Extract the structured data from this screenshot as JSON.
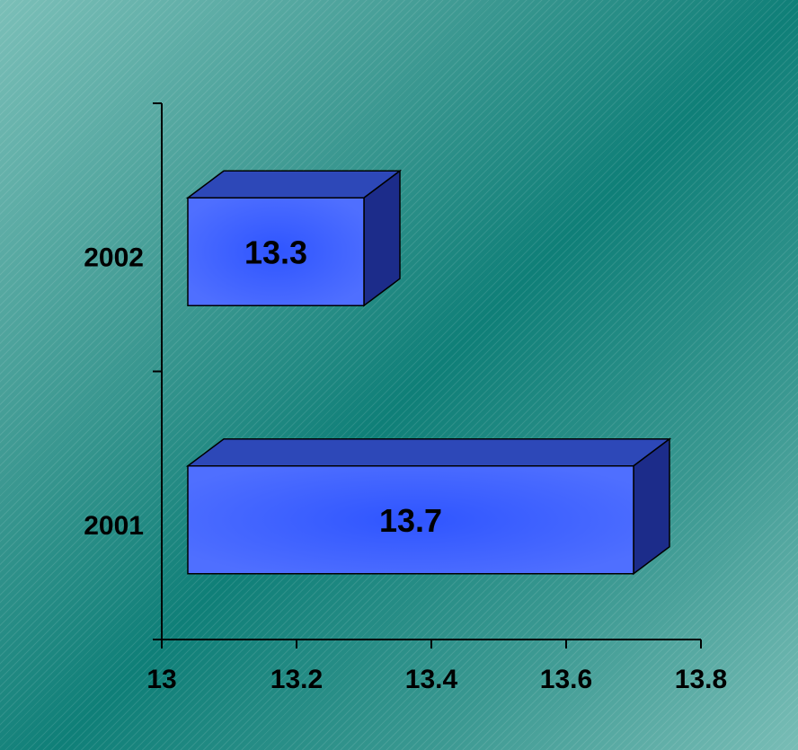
{
  "chart_data": {
    "type": "bar",
    "orientation": "horizontal",
    "style": "3d",
    "categories": [
      "2001",
      "2002"
    ],
    "values": [
      13.7,
      13.3
    ],
    "data_labels": [
      "13.7",
      "13.3"
    ],
    "xlim": [
      13,
      13.8
    ],
    "xticks": [
      "13",
      "13.2",
      "13.4",
      "13.6",
      "13.8"
    ],
    "title": "",
    "xlabel": "",
    "ylabel": "",
    "grid": false,
    "legend": "none",
    "colors": {
      "bar_front": "#4f6fff",
      "bar_front_center": "#2f55ff",
      "bar_top": "#2d48b8",
      "bar_side": "#1c2c8a",
      "axis": "#000000"
    }
  }
}
